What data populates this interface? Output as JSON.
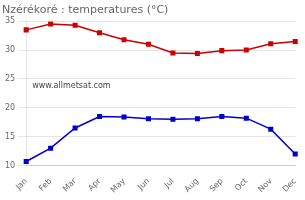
{
  "chart_data": {
    "type": "line",
    "title": "Nzérékoré : temperatures (°C)",
    "categories": [
      "Jan",
      "Feb",
      "Mar",
      "Apr",
      "May",
      "Jun",
      "Jul",
      "Aug",
      "Sep",
      "Oct",
      "Nov",
      "Dec"
    ],
    "series": [
      {
        "color": "#cc0000",
        "marker": "square",
        "values": [
          33.5,
          34.5,
          34.3,
          33.0,
          31.8,
          31.0,
          29.5,
          29.4,
          29.9,
          30.0,
          31.1,
          31.5
        ]
      },
      {
        "color": "#0000cc",
        "marker": "square",
        "values": [
          10.7,
          13.0,
          16.5,
          18.5,
          18.4,
          18.1,
          18.0,
          18.1,
          18.5,
          18.2,
          16.3,
          12.0
        ]
      }
    ],
    "ylim": [
      10,
      35
    ],
    "yticks": [
      10,
      15,
      20,
      25,
      30,
      35
    ],
    "grid": "y",
    "annotations": [
      "www.allmetsat.com"
    ]
  }
}
